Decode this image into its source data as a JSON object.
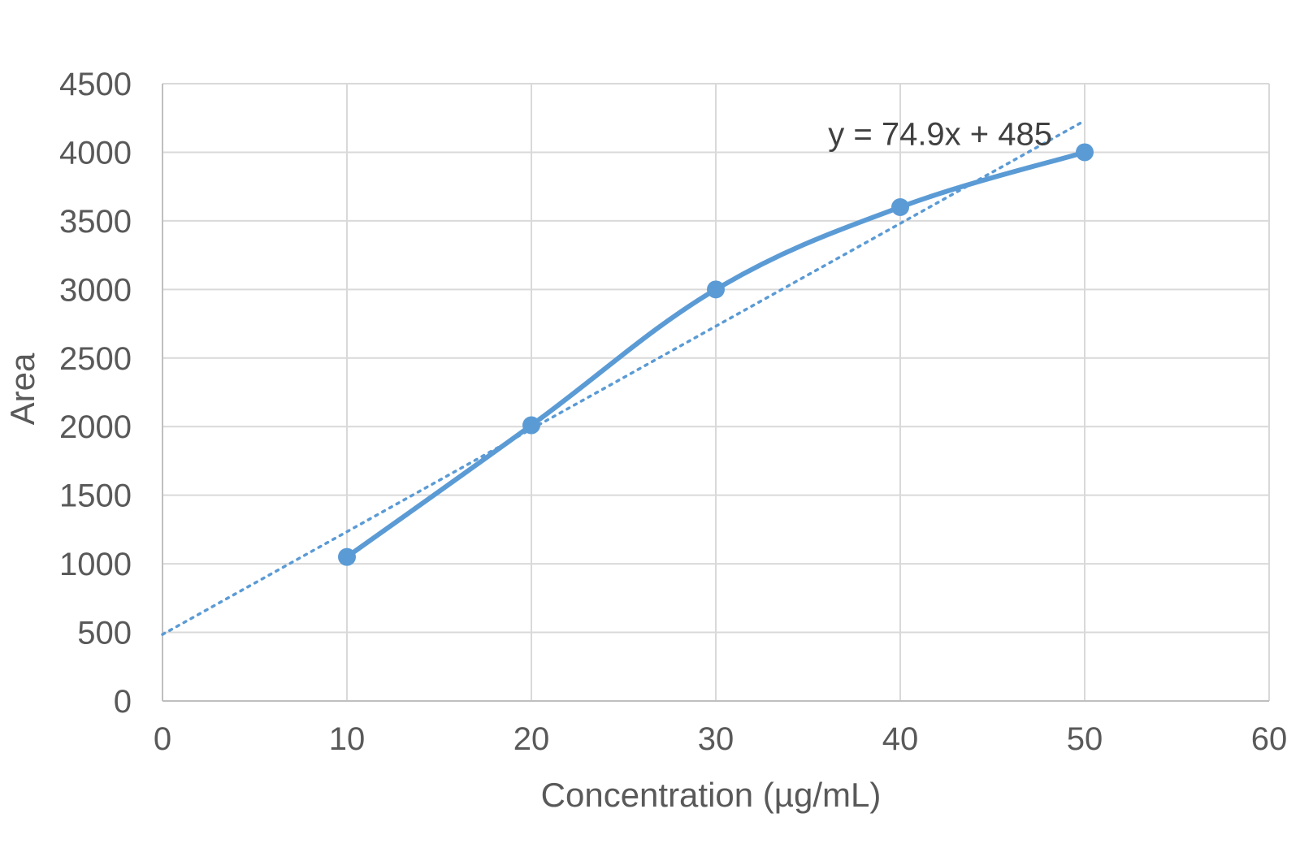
{
  "chart_data": {
    "type": "scatter",
    "title": "",
    "xlabel": "Concentration (µg/mL)",
    "ylabel": "Area",
    "xlim": [
      0,
      60
    ],
    "ylim": [
      0,
      4500
    ],
    "xticks": [
      0,
      10,
      20,
      30,
      40,
      50,
      60
    ],
    "yticks": [
      0,
      500,
      1000,
      1500,
      2000,
      2500,
      3000,
      3500,
      4000,
      4500
    ],
    "grid": true,
    "legend": "none",
    "series": [
      {
        "x": [
          10,
          20,
          30,
          40,
          50
        ],
        "y": [
          1050,
          2010,
          3000,
          3600,
          4000
        ],
        "color": "#5b9bd5",
        "line": "smoothed",
        "markers": "circle"
      }
    ],
    "trendline": {
      "type": "linear",
      "equation": "y = 74.9x + 485",
      "slope": 74.9,
      "intercept": 485,
      "x_range": [
        0,
        50
      ],
      "style": "dotted",
      "color": "#5b9bd5"
    }
  }
}
